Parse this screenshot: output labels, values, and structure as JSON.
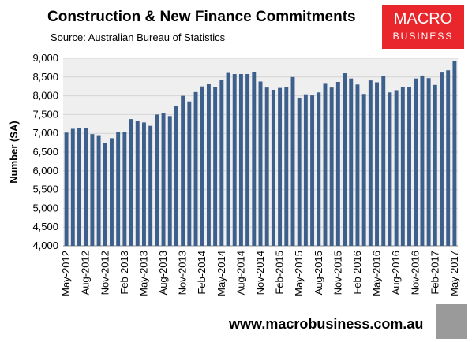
{
  "chart_data": {
    "type": "bar",
    "title": "Construction & New Finance Commitments",
    "subtitle": "Source: Australian Bureau of Statistics",
    "y_label": "Number (SA)",
    "logo_top": "MACRO",
    "logo_bottom": "BUSINESS",
    "footer": "www.macrobusiness.com.au",
    "color": "#3c5f8c",
    "grid": true,
    "categories": [
      "May-2012",
      null,
      null,
      "Aug-2012",
      null,
      null,
      "Nov-2012",
      null,
      null,
      "Feb-2013",
      null,
      null,
      "May-2013",
      null,
      null,
      "Aug-2013",
      null,
      null,
      "Nov-2013",
      null,
      null,
      "Feb-2014",
      null,
      null,
      "May-2014",
      null,
      null,
      "Aug-2014",
      null,
      null,
      "Nov-2014",
      null,
      null,
      "Feb-2015",
      null,
      null,
      "May-2015",
      null,
      null,
      "Aug-2015",
      null,
      null,
      "Nov-2015",
      null,
      null,
      "Feb-2016",
      null,
      null,
      "May-2016",
      null,
      null,
      "Aug-2016",
      null,
      null,
      "Nov-2016",
      null,
      null,
      "Feb-2017",
      null,
      null,
      "May-2017"
    ],
    "values": [
      7020,
      7120,
      7150,
      7150,
      6980,
      6950,
      6740,
      6870,
      7030,
      7030,
      7380,
      7330,
      7290,
      7200,
      7500,
      7530,
      7460,
      7720,
      8000,
      7850,
      8100,
      8250,
      8310,
      8230,
      8430,
      8610,
      8580,
      8580,
      8580,
      8630,
      8380,
      8220,
      8160,
      8210,
      8230,
      8500,
      7950,
      8040,
      8010,
      8090,
      8340,
      8220,
      8370,
      8600,
      8460,
      8300,
      8050,
      8410,
      8360,
      8530,
      8090,
      8150,
      8240,
      8230,
      8460,
      8540,
      8470,
      8290,
      8620,
      8680,
      8920
    ],
    "ylim": [
      4000,
      9000
    ],
    "yticks": [
      {
        "value": 4000,
        "label": "4,000"
      },
      {
        "value": 4500,
        "label": "4,500"
      },
      {
        "value": 5000,
        "label": "5,000"
      },
      {
        "value": 5500,
        "label": "5,500"
      },
      {
        "value": 6000,
        "label": "6,000"
      },
      {
        "value": 6500,
        "label": "6,500"
      },
      {
        "value": 7000,
        "label": "7,000"
      },
      {
        "value": 7500,
        "label": "7,500"
      },
      {
        "value": 8000,
        "label": "8,000"
      },
      {
        "value": 8500,
        "label": "8,500"
      },
      {
        "value": 9000,
        "label": "9,000"
      }
    ]
  }
}
